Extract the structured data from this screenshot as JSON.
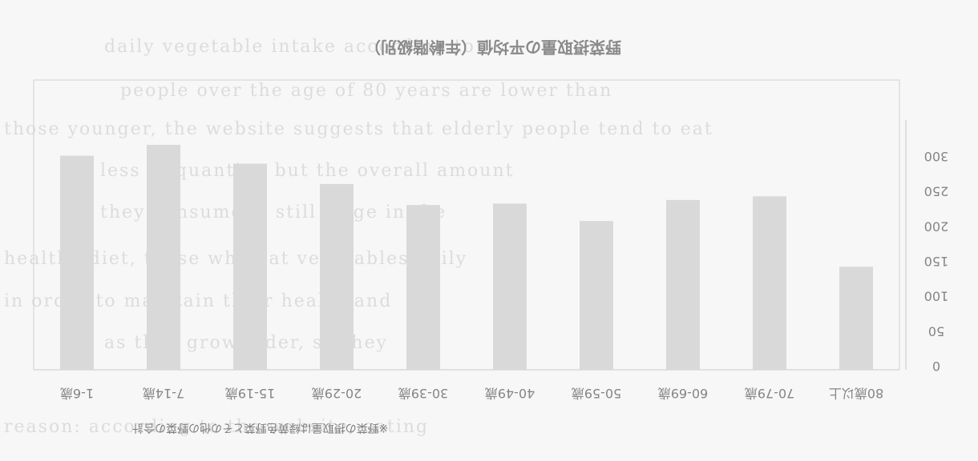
{
  "chart_data": {
    "type": "bar",
    "title": "野菜摂取量の平均値（年齢階級別）",
    "categories_ltr": [
      "1-6歳",
      "7-14歳",
      "15-19歳",
      "20-29歳",
      "30-39歳",
      "40-49歳",
      "50-59歳",
      "60-69歳",
      "70-79歳",
      "80歳以上"
    ],
    "values_ltr": [
      295,
      310,
      284,
      256,
      227,
      229,
      205,
      234,
      239,
      142
    ],
    "y_ticks_top_to_bottom": [
      "300",
      "250",
      "200",
      "150",
      "100",
      "50",
      "0"
    ],
    "ylim": [
      0,
      300
    ],
    "ylabel": "",
    "xlabel": "",
    "note": "※野菜の摂取量は緑黄色野菜とその他の野菜の合計",
    "colors": {
      "bar": "#d9d9d9",
      "axis": "#c8c8c8",
      "text": "#858585"
    }
  }
}
